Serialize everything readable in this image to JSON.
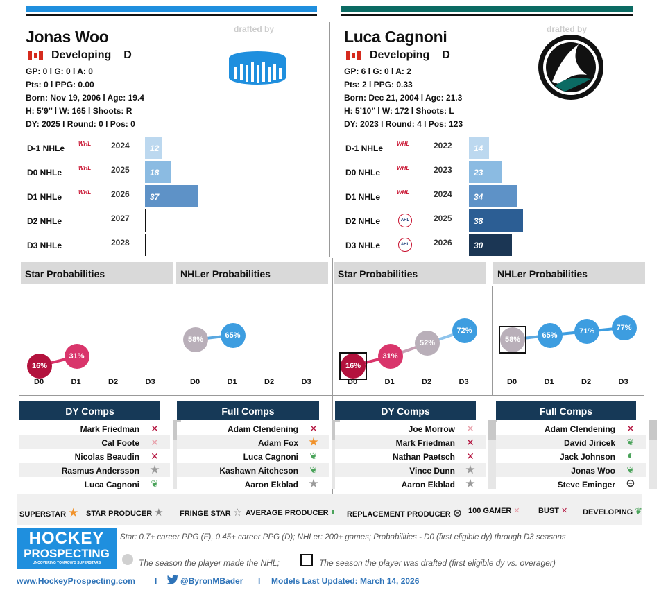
{
  "colors": {
    "p1_bar": "#1f8fde",
    "p2_bar": "#0b6b63",
    "header_dark": "#163957",
    "star_dark": "#b3123d",
    "star_mid": "#d9356b",
    "grey_dot": "#b9afb9",
    "nhl_blue": "#3d9de0"
  },
  "drafted_by_label": "drafted by",
  "player1": {
    "name": "Jonas Woo",
    "status": "Developing",
    "position": "D",
    "stats_line1": "GP: 0 l G: 0 l A: 0",
    "stats_line2": "Pts: 0 l PPG: 0.00",
    "born": "Born: Nov 19, 2006 l Age: 19.4",
    "physical": "H: 5’9’’ l W: 165 l Shoots: R",
    "draft": "DY: 2025 l Round: 0 l Pos: 0",
    "team_logo": "pucks-logo-icon",
    "nhle": [
      {
        "label": "D-1 NHLe",
        "league": "WHL",
        "year": "2024",
        "value": 12
      },
      {
        "label": "D0 NHLe",
        "league": "WHL",
        "year": "2025",
        "value": 18
      },
      {
        "label": "D1 NHLe",
        "league": "WHL",
        "year": "2026",
        "value": 37
      },
      {
        "label": "D2 NHLe",
        "league": "",
        "year": "2027",
        "value": null
      },
      {
        "label": "D3 NHLe",
        "league": "",
        "year": "2028",
        "value": null
      }
    ],
    "star_title": "Star Probabilities",
    "nhler_title": "NHLer Probabilities",
    "star_probs": [
      "16%",
      "31%"
    ],
    "nhler_probs": [
      "58%",
      "65%"
    ],
    "d_labels": [
      "D0",
      "D1",
      "D2",
      "D3"
    ],
    "dy_comps_title": "DY Comps",
    "full_comps_title": "Full Comps",
    "dy_comps": [
      {
        "name": "Mark Friedman",
        "icon": "bust"
      },
      {
        "name": "Cal Foote",
        "icon": "100gamer"
      },
      {
        "name": "Nicolas Beaudin",
        "icon": "bust"
      },
      {
        "name": "Rasmus Andersson",
        "icon": "fringe"
      },
      {
        "name": "Luca Cagnoni",
        "icon": "developing"
      }
    ],
    "full_comps": [
      {
        "name": "Adam Clendening",
        "icon": "bust"
      },
      {
        "name": "Adam Fox",
        "icon": "superstar"
      },
      {
        "name": "Luca Cagnoni",
        "icon": "developing"
      },
      {
        "name": "Kashawn Aitcheson",
        "icon": "developing"
      },
      {
        "name": "Aaron Ekblad",
        "icon": "fringe"
      }
    ]
  },
  "player2": {
    "name": "Luca Cagnoni",
    "status": "Developing",
    "position": "D",
    "stats_line1": "GP: 6 l G: 0 l A: 2",
    "stats_line2": "Pts: 2 l PPG: 0.33",
    "born": "Born: Dec 21, 2004 l Age: 21.3",
    "physical": "H: 5’10’’ l W: 172 l Shoots: L",
    "draft": "DY: 2023 l Round: 4 l Pos: 123",
    "team_logo": "shark-fin-logo-icon",
    "nhle": [
      {
        "label": "D-1 NHLe",
        "league": "WHL",
        "year": "2022",
        "value": 14
      },
      {
        "label": "D0 NHLe",
        "league": "WHL",
        "year": "2023",
        "value": 23
      },
      {
        "label": "D1 NHLe",
        "league": "WHL",
        "year": "2024",
        "value": 34
      },
      {
        "label": "D2 NHLe",
        "league": "AHL",
        "year": "2025",
        "value": 38
      },
      {
        "label": "D3 NHLe",
        "league": "AHL",
        "year": "2026",
        "value": 30
      }
    ],
    "star_title": "Star Probabilities",
    "nhler_title": "NHLer Probabilities",
    "star_probs": [
      "16%",
      "31%",
      "52%",
      "72%"
    ],
    "nhler_probs": [
      "58%",
      "65%",
      "71%",
      "77%"
    ],
    "d_labels": [
      "D0",
      "D1",
      "D2",
      "D3"
    ],
    "dy_comps_title": "DY Comps",
    "full_comps_title": "Full Comps",
    "dy_comps": [
      {
        "name": "Joe Morrow",
        "icon": "100gamer"
      },
      {
        "name": "Mark Friedman",
        "icon": "bust"
      },
      {
        "name": "Nathan Paetsch",
        "icon": "bust"
      },
      {
        "name": "Vince Dunn",
        "icon": "fringe"
      },
      {
        "name": "Aaron Ekblad",
        "icon": "fringe"
      }
    ],
    "full_comps": [
      {
        "name": "Adam Clendening",
        "icon": "bust"
      },
      {
        "name": "David Jiricek",
        "icon": "developing"
      },
      {
        "name": "Jack Johnson",
        "icon": "average"
      },
      {
        "name": "Jonas Woo",
        "icon": "developing"
      },
      {
        "name": "Steve Eminger",
        "icon": "replacement"
      }
    ]
  },
  "legend": [
    {
      "label": "SUPERSTAR",
      "icon": "superstar"
    },
    {
      "label": "STAR PRODUCER",
      "icon": "star-producer"
    },
    {
      "label": "FRINGE STAR",
      "icon": "fringe-outline"
    },
    {
      "label": "AVERAGE PRODUCER",
      "icon": "average"
    },
    {
      "label": "REPLACEMENT PRODUCER",
      "icon": "replacement"
    },
    {
      "label": "100 GAMER",
      "icon": "100gamer"
    },
    {
      "label": "BUST",
      "icon": "bust"
    },
    {
      "label": "DEVELOPING",
      "icon": "developing"
    }
  ],
  "logo": {
    "line1": "HOCKEY",
    "line2": "PROSPECTING",
    "tagline": "UNCOVERING TOMROW'S SUPERSTARS"
  },
  "notes": {
    "line1": "Star: 0.7+ career PPG (F), 0.45+ career PPG (D); NHLer: 200+ games; Probabilities - D0 (first eligible dy) through D3 seasons",
    "made_nhl": "The season the player made the NHL;",
    "drafted": "The season the player was drafted (first eligible dy vs. overager)"
  },
  "footer": {
    "site": "www.HockeyProspecting.com",
    "sep": "l",
    "twitter": "@ByronMBader",
    "updated": "Models Last Updated: March 14, 2026"
  }
}
